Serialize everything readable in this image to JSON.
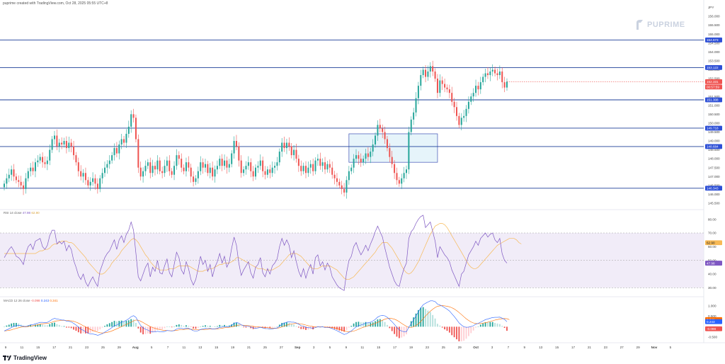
{
  "header": {
    "text": "puprime created with TradingView.com, Oct 28, 2025 05:55 UTC+8"
  },
  "watermark": {
    "text": "PUPRIME"
  },
  "footer": {
    "brand": "TradingView"
  },
  "colors": {
    "up": "#26a69a",
    "down": "#ef5350",
    "level": "#2962ff",
    "rsi": "#7e57c2",
    "rsi_ma": "#f7b955",
    "macd": "#2962ff",
    "signal": "#ff6d00",
    "zone": "#e6f4fa"
  },
  "panes": {
    "rsi": {
      "label": "RSI 14 close",
      "values": [
        "47.98",
        "62.90"
      ]
    },
    "macd": {
      "label": "MACD 12 26 close",
      "values": [
        "-0.098",
        "0.243",
        "0.341"
      ]
    }
  },
  "chart_data": [
    {
      "type": "candlestick",
      "instrument": "USDJPY",
      "unit": "JPY",
      "x_ticks": [
        "9",
        "11",
        "15",
        "17",
        "21",
        "23",
        "25",
        "29",
        "Aug",
        "5",
        "7",
        "11",
        "13",
        "15",
        "19",
        "21",
        "25",
        "27",
        "Sep",
        "3",
        "5",
        "9",
        "11",
        "15",
        "17",
        "19",
        "23",
        "25",
        "29",
        "Oct",
        "3",
        "7",
        "9",
        "13",
        "15",
        "17",
        "21",
        "23",
        "27",
        "29",
        "Nov",
        "5"
      ],
      "ylim": [
        145.3,
        156.6
      ],
      "y_ticks": [
        "156.000",
        "155.500",
        "155.000",
        "154.500",
        "154.000",
        "153.500",
        "153.000",
        "152.500",
        "152.000",
        "151.500",
        "151.000",
        "150.500",
        "150.000",
        "149.500",
        "149.000",
        "148.500",
        "148.000",
        "147.500",
        "147.000",
        "146.500",
        "146.000",
        "145.500"
      ],
      "axis_label": "JPY",
      "key_levels": [
        "154.673",
        "153.122",
        "151.308",
        "149.718",
        "148.684",
        "146.343"
      ],
      "last_price": "152.331",
      "countdown": "00:57:59",
      "zone": {
        "x_start_index": 144,
        "x_end_index": 181,
        "price_low": 147.8,
        "price_high": 149.4
      },
      "closes": [
        146.6,
        146.9,
        147.1,
        147.4,
        147.0,
        146.8,
        146.7,
        146.5,
        146.3,
        146.9,
        147.3,
        147.5,
        147.3,
        147.8,
        147.9,
        148.1,
        147.8,
        147.7,
        147.9,
        148.5,
        149.1,
        149.3,
        148.7,
        148.9,
        148.8,
        149.0,
        148.6,
        148.9,
        148.7,
        148.2,
        147.8,
        147.3,
        147.0,
        147.2,
        146.8,
        146.5,
        146.7,
        146.9,
        146.6,
        146.3,
        146.9,
        147.2,
        147.5,
        147.7,
        147.9,
        148.2,
        148.6,
        148.3,
        148.8,
        149.1,
        148.9,
        149.4,
        149.8,
        150.5,
        150.3,
        149.1,
        147.5,
        147.0,
        147.3,
        147.6,
        147.8,
        147.2,
        147.6,
        147.4,
        147.9,
        147.3,
        147.2,
        147.6,
        147.9,
        147.3,
        147.1,
        147.6,
        148.2,
        148.0,
        147.5,
        147.3,
        147.8,
        147.5,
        147.0,
        146.7,
        146.9,
        147.3,
        147.8,
        147.5,
        147.7,
        147.2,
        147.5,
        147.0,
        147.4,
        147.6,
        148.0,
        147.6,
        147.9,
        147.5,
        147.7,
        148.3,
        149.0,
        148.7,
        147.9,
        147.2,
        147.4,
        147.6,
        147.8,
        147.3,
        147.0,
        147.5,
        147.6,
        147.9,
        147.3,
        147.1,
        147.4,
        147.2,
        147.5,
        147.6,
        147.8,
        148.4,
        148.9,
        148.6,
        148.9,
        148.7,
        148.2,
        148.5,
        148.0,
        147.6,
        147.3,
        147.6,
        147.2,
        147.5,
        147.7,
        147.3,
        147.9,
        148.0,
        147.6,
        147.8,
        147.4,
        147.7,
        147.5,
        147.1,
        146.9,
        146.7,
        146.5,
        146.3,
        146.1,
        146.8,
        147.3,
        147.5,
        148.0,
        148.2,
        148.0,
        147.8,
        148.0,
        148.3,
        148.1,
        148.4,
        148.8,
        149.3,
        149.9,
        149.7,
        149.5,
        149.1,
        148.6,
        148.1,
        147.7,
        147.2,
        146.8,
        146.6,
        146.9,
        147.2,
        147.4,
        149.5,
        150.2,
        150.6,
        151.4,
        152.1,
        152.7,
        153.0,
        152.6,
        152.9,
        153.2,
        152.9,
        152.5,
        151.7,
        152.4,
        152.2,
        152.0,
        151.9,
        151.7,
        151.2,
        150.9,
        150.4,
        149.9,
        150.3,
        150.4,
        150.8,
        151.2,
        151.5,
        151.7,
        152.1,
        151.9,
        152.3,
        152.6,
        152.8,
        152.7,
        152.9,
        153.0,
        152.8,
        152.7,
        152.9,
        152.3,
        152.0,
        152.33
      ]
    },
    {
      "type": "line",
      "name": "RSI",
      "ylim": [
        25,
        85
      ],
      "y_ticks": [
        "80.00",
        "70.00",
        "60.00",
        "50.00",
        "40.00",
        "30.00"
      ],
      "bands": [
        70,
        30
      ],
      "x_index_range": [
        0,
        225
      ],
      "rsi": [
        52,
        55,
        58,
        60,
        57,
        53,
        52,
        50,
        47,
        55,
        60,
        62,
        58,
        64,
        65,
        66,
        60,
        58,
        61,
        68,
        72,
        72,
        62,
        64,
        62,
        64,
        57,
        61,
        58,
        50,
        45,
        39,
        36,
        40,
        34,
        31,
        35,
        38,
        34,
        31,
        42,
        47,
        52,
        55,
        57,
        61,
        65,
        58,
        65,
        68,
        63,
        69,
        72,
        78,
        72,
        55,
        38,
        35,
        40,
        45,
        48,
        38,
        45,
        42,
        50,
        41,
        40,
        46,
        51,
        41,
        38,
        47,
        56,
        52,
        43,
        40,
        49,
        44,
        36,
        32,
        36,
        44,
        53,
        47,
        50,
        42,
        47,
        38,
        45,
        49,
        55,
        48,
        53,
        45,
        49,
        59,
        67,
        61,
        48,
        39,
        43,
        46,
        49,
        41,
        37,
        45,
        47,
        52,
        41,
        38,
        44,
        40,
        46,
        48,
        51,
        60,
        66,
        61,
        65,
        61,
        52,
        57,
        49,
        42,
        38,
        44,
        37,
        43,
        47,
        40,
        52,
        54,
        46,
        49,
        43,
        48,
        45,
        38,
        35,
        32,
        30,
        29,
        28,
        41,
        50,
        53,
        60,
        63,
        58,
        54,
        57,
        61,
        57,
        62,
        66,
        71,
        75,
        71,
        67,
        59,
        52,
        45,
        40,
        35,
        32,
        31,
        38,
        44,
        48,
        66,
        71,
        73,
        77,
        80,
        82,
        83,
        74,
        76,
        78,
        71,
        64,
        52,
        60,
        57,
        54,
        52,
        49,
        43,
        39,
        35,
        31,
        40,
        42,
        48,
        54,
        57,
        60,
        64,
        61,
        66,
        68,
        70,
        67,
        69,
        70,
        65,
        63,
        66,
        55,
        50,
        48
      ],
      "rsi_ma": [
        55,
        55,
        55,
        55,
        55,
        55,
        55,
        55,
        55,
        55,
        55,
        55,
        55,
        55,
        56,
        57,
        57,
        58,
        58,
        59,
        61,
        62,
        62,
        63,
        64,
        64,
        64,
        63,
        63,
        62,
        60,
        58,
        56,
        54,
        52,
        49,
        47,
        45,
        43,
        41,
        40,
        40,
        41,
        43,
        45,
        48,
        50,
        52,
        54,
        57,
        59,
        61,
        63,
        65,
        66,
        65,
        63,
        60,
        57,
        54,
        52,
        49,
        47,
        45,
        44,
        43,
        43,
        43,
        43,
        44,
        44,
        44,
        45,
        46,
        46,
        46,
        46,
        46,
        45,
        44,
        43,
        42,
        42,
        42,
        43,
        43,
        44,
        44,
        45,
        46,
        47,
        47,
        48,
        48,
        48,
        49,
        50,
        52,
        52,
        51,
        50,
        49,
        48,
        47,
        46,
        45,
        44,
        44,
        44,
        43,
        43,
        43,
        43,
        44,
        45,
        46,
        48,
        50,
        52,
        54,
        55,
        55,
        55,
        54,
        53,
        51,
        49,
        47,
        45,
        44,
        44,
        44,
        45,
        46,
        46,
        46,
        46,
        45,
        44,
        43,
        41,
        39,
        37,
        36,
        36,
        37,
        38,
        40,
        42,
        44,
        46,
        48,
        50,
        52,
        54,
        56,
        59,
        61,
        63,
        63,
        63,
        61,
        59,
        56,
        53,
        50,
        46,
        43,
        41,
        40,
        41,
        43,
        46,
        49,
        53,
        57,
        61,
        65,
        69,
        72,
        75,
        76,
        77,
        77,
        76,
        74,
        71,
        68,
        65,
        62,
        59,
        56,
        53,
        50,
        47,
        45,
        44,
        44,
        45,
        47,
        49,
        51,
        53,
        55,
        57,
        59,
        61,
        62,
        63,
        64,
        65,
        66,
        66,
        66,
        65,
        63,
        62
      ]
    },
    {
      "type": "line",
      "name": "MACD",
      "ylim": [
        -0.7,
        1.3
      ],
      "y_ticks": [
        "1.000",
        "0.500",
        "-0.500"
      ],
      "x_index_range": [
        0,
        225
      ],
      "macd": [
        -0.2,
        -0.15,
        -0.1,
        -0.04,
        0.02,
        0.05,
        0.06,
        0.05,
        0.02,
        0.01,
        0.05,
        0.09,
        0.1,
        0.14,
        0.17,
        0.21,
        0.21,
        0.2,
        0.21,
        0.27,
        0.35,
        0.4,
        0.37,
        0.35,
        0.32,
        0.32,
        0.27,
        0.26,
        0.23,
        0.16,
        0.08,
        -0.02,
        -0.12,
        -0.17,
        -0.24,
        -0.31,
        -0.34,
        -0.35,
        -0.37,
        -0.41,
        -0.38,
        -0.33,
        -0.26,
        -0.19,
        -0.12,
        -0.04,
        0.05,
        0.08,
        0.15,
        0.22,
        0.25,
        0.31,
        0.38,
        0.48,
        0.53,
        0.45,
        0.25,
        0.06,
        -0.06,
        -0.12,
        -0.16,
        -0.23,
        -0.24,
        -0.25,
        -0.22,
        -0.24,
        -0.25,
        -0.23,
        -0.18,
        -0.19,
        -0.21,
        -0.18,
        -0.11,
        -0.07,
        -0.08,
        -0.1,
        -0.07,
        -0.08,
        -0.13,
        -0.19,
        -0.21,
        -0.19,
        -0.13,
        -0.11,
        -0.08,
        -0.09,
        -0.08,
        -0.11,
        -0.1,
        -0.08,
        -0.03,
        -0.02,
        0.01,
        0.0,
        0.01,
        0.07,
        0.16,
        0.2,
        0.17,
        0.09,
        0.05,
        0.03,
        0.03,
        -0.01,
        -0.06,
        -0.07,
        -0.06,
        -0.03,
        -0.06,
        -0.09,
        -0.09,
        -0.11,
        -0.1,
        -0.08,
        -0.06,
        0.02,
        0.12,
        0.17,
        0.22,
        0.24,
        0.22,
        0.22,
        0.18,
        0.12,
        0.05,
        0.03,
        -0.03,
        -0.05,
        -0.05,
        -0.08,
        -0.04,
        -0.01,
        -0.02,
        -0.01,
        -0.04,
        -0.04,
        -0.05,
        -0.09,
        -0.14,
        -0.19,
        -0.25,
        -0.31,
        -0.37,
        -0.34,
        -0.27,
        -0.2,
        -0.1,
        -0.01,
        0.05,
        0.08,
        0.12,
        0.17,
        0.19,
        0.22,
        0.27,
        0.35,
        0.46,
        0.52,
        0.54,
        0.52,
        0.45,
        0.35,
        0.24,
        0.11,
        -0.03,
        -0.15,
        -0.21,
        -0.24,
        -0.24,
        -0.03,
        0.15,
        0.32,
        0.51,
        0.71,
        0.9,
        1.05,
        1.12,
        1.18,
        1.24,
        1.24,
        1.2,
        1.08,
        1.04,
        0.98,
        0.91,
        0.84,
        0.75,
        0.62,
        0.49,
        0.34,
        0.18,
        0.08,
        0.0,
        -0.03,
        -0.02,
        0.01,
        0.05,
        0.12,
        0.16,
        0.22,
        0.28,
        0.34,
        0.37,
        0.41,
        0.44,
        0.45,
        0.45,
        0.46,
        0.41,
        0.35,
        0.24
      ],
      "signal": [
        -0.2,
        -0.19,
        -0.17,
        -0.15,
        -0.11,
        -0.08,
        -0.05,
        -0.02,
        -0.01,
        -0.01,
        0.01,
        0.03,
        0.05,
        0.07,
        0.09,
        0.12,
        0.14,
        0.15,
        0.16,
        0.18,
        0.22,
        0.26,
        0.28,
        0.29,
        0.3,
        0.3,
        0.3,
        0.29,
        0.28,
        0.26,
        0.22,
        0.17,
        0.11,
        0.05,
        -0.01,
        -0.08,
        -0.13,
        -0.18,
        -0.22,
        -0.26,
        -0.29,
        -0.3,
        -0.29,
        -0.27,
        -0.24,
        -0.2,
        -0.15,
        -0.1,
        -0.05,
        0.01,
        0.06,
        0.11,
        0.16,
        0.22,
        0.28,
        0.32,
        0.31,
        0.26,
        0.2,
        0.13,
        0.07,
        0.01,
        -0.04,
        -0.08,
        -0.11,
        -0.14,
        -0.16,
        -0.18,
        -0.18,
        -0.19,
        -0.19,
        -0.19,
        -0.17,
        -0.15,
        -0.14,
        -0.13,
        -0.12,
        -0.11,
        -0.12,
        -0.13,
        -0.14,
        -0.15,
        -0.14,
        -0.14,
        -0.13,
        -0.12,
        -0.11,
        -0.11,
        -0.11,
        -0.1,
        -0.09,
        -0.07,
        -0.05,
        -0.04,
        -0.03,
        -0.01,
        0.02,
        0.06,
        0.08,
        0.08,
        0.07,
        0.06,
        0.05,
        0.04,
        0.02,
        0.0,
        -0.01,
        -0.02,
        -0.03,
        -0.04,
        -0.05,
        -0.06,
        -0.07,
        -0.07,
        -0.07,
        -0.05,
        -0.01,
        0.03,
        0.07,
        0.11,
        0.13,
        0.15,
        0.16,
        0.15,
        0.13,
        0.11,
        0.08,
        0.05,
        0.03,
        0.01,
        0.0,
        -0.01,
        -0.01,
        -0.01,
        -0.02,
        -0.02,
        -0.03,
        -0.04,
        -0.06,
        -0.09,
        -0.12,
        -0.16,
        -0.2,
        -0.23,
        -0.24,
        -0.23,
        -0.21,
        -0.17,
        -0.12,
        -0.07,
        -0.03,
        0.01,
        0.05,
        0.08,
        0.12,
        0.16,
        0.21,
        0.26,
        0.31,
        0.36,
        0.39,
        0.4,
        0.39,
        0.36,
        0.31,
        0.24,
        0.16,
        0.09,
        0.02,
        -0.04,
        -0.04,
        0.0,
        0.06,
        0.14,
        0.25,
        0.38,
        0.51,
        0.63,
        0.74,
        0.84,
        0.92,
        0.98,
        1.0,
        1.01,
        1.0,
        0.98,
        0.95,
        0.91,
        0.85,
        0.77,
        0.68,
        0.58,
        0.48,
        0.38,
        0.3,
        0.23,
        0.18,
        0.15,
        0.15,
        0.15,
        0.17,
        0.19,
        0.22,
        0.25,
        0.28,
        0.32,
        0.34,
        0.37,
        0.38,
        0.39,
        0.38,
        0.34
      ]
    }
  ]
}
